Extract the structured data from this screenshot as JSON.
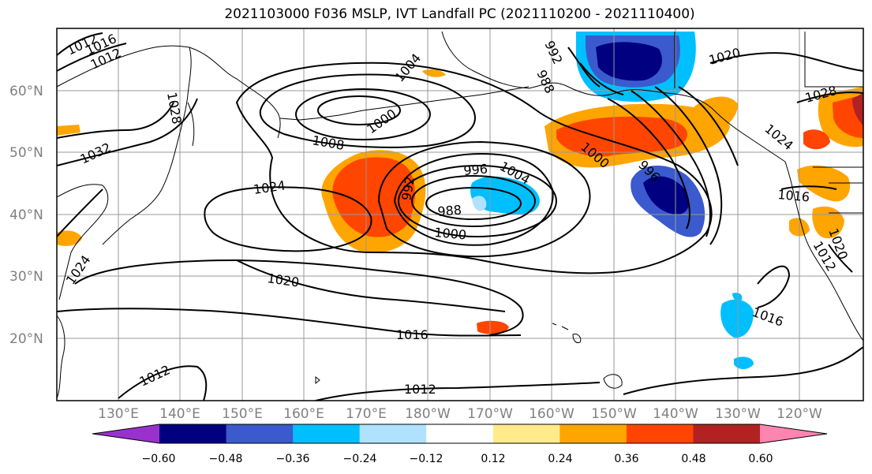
{
  "title": "2021103000 F036 MSLP, IVT Landfall PC (2021110200 - 2021110400)",
  "lat_labels": [
    "60°N",
    "50°N",
    "40°N",
    "30°N",
    "20°N"
  ],
  "lon_labels": [
    "130°E",
    "140°E",
    "150°E",
    "160°E",
    "170°E",
    "180°W",
    "170°W",
    "160°W",
    "150°W",
    "140°W",
    "130°W",
    "120°W"
  ],
  "isobar_labels": [
    "1012",
    "1016",
    "1012",
    "1028",
    "1008",
    "1000",
    "1004",
    "1032",
    "1024",
    "996",
    "992",
    "988",
    "1000",
    "1004",
    "1020",
    "1016",
    "1012",
    "1012",
    "1024",
    "1020",
    "1028",
    "1016",
    "1016",
    "1012",
    "988",
    "992",
    "996",
    "1000",
    "1024",
    "1020"
  ],
  "colorbar": {
    "ticks": [
      "−0.60",
      "−0.48",
      "−0.36",
      "−0.24",
      "−0.12",
      "0.12",
      "0.24",
      "0.36",
      "0.48",
      "0.60"
    ],
    "colors": [
      "#9932cc",
      "#000080",
      "#3a5acd",
      "#00bfff",
      "#b0e2ff",
      "#ffffff",
      "#ffeb8a",
      "#ffa500",
      "#ff4500",
      "#b22222",
      "#ff85b0"
    ]
  }
}
